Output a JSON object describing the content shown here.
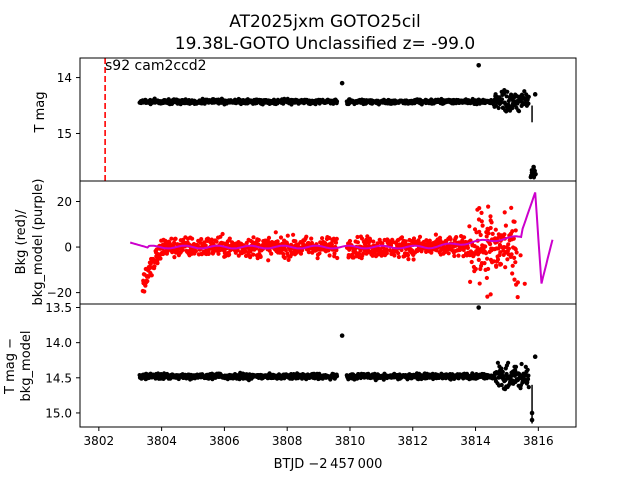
{
  "title": {
    "line1": "AT2025jxm  GOTO25cil",
    "line2": "19.38L-GOTO Unclassified z= -99.0"
  },
  "xlabel": "BTJD −2 457 000",
  "x_ticks": [
    "3802",
    "3804",
    "3806",
    "3808",
    "3810",
    "3812",
    "3814",
    "3816"
  ],
  "colors": {
    "mag": "#000000",
    "bkg": "#ff0000",
    "model": "#cc00cc",
    "marker": "#ff0000"
  },
  "chart_data": [
    {
      "type": "scatter",
      "panel": "top",
      "ylabel": "T mag",
      "y_ticks": [
        "14",
        "15"
      ],
      "ylim": [
        15.85,
        13.65
      ],
      "xlim": [
        3801.4,
        3817.2
      ],
      "annotation": {
        "text": "s92 cam2ccd2",
        "x": 3802.2
      },
      "marker_line": {
        "x": 3802.2,
        "color": "#ff0000",
        "style": "dashed"
      },
      "series": [
        {
          "name": "T mag",
          "color": "#000000",
          "x_range": [
            3803.3,
            3815.7
          ],
          "median": 14.43,
          "scatter": 0.04,
          "gap": [
            3809.6,
            3809.9
          ]
        }
      ],
      "points": [
        {
          "x": 3809.75,
          "y": 14.1
        },
        {
          "x": 3814.1,
          "y": 13.78
        },
        {
          "x": 3815.9,
          "y": 14.3
        },
        {
          "x": 3815.85,
          "y": 15.6
        },
        {
          "x": 3815.8,
          "y": 15.7
        }
      ]
    },
    {
      "type": "scatter",
      "panel": "middle",
      "ylabel": "Bkg (red)/\nbkg_model (purple)",
      "y_ticks": [
        "20",
        "0",
        "−20"
      ],
      "ylim": [
        -25,
        29
      ],
      "series": [
        {
          "name": "Bkg",
          "color": "#ff0000",
          "x_range": [
            3803.4,
            3815.3
          ],
          "median": 0,
          "scatter": 4
        },
        {
          "name": "bkg_model",
          "color": "#cc00cc",
          "x_range": [
            3803.0,
            3816.5
          ]
        }
      ]
    },
    {
      "type": "scatter",
      "panel": "bottom",
      "ylabel": "T mag −\nbkg_model",
      "y_ticks": [
        "13.5",
        "14.0",
        "14.5",
        "15.0"
      ],
      "ylim": [
        15.2,
        13.45
      ],
      "series": [
        {
          "name": "T mag - bkg_model",
          "color": "#000000",
          "x_range": [
            3803.3,
            3815.7
          ],
          "median": 14.48,
          "scatter": 0.04
        }
      ],
      "points": [
        {
          "x": 3809.75,
          "y": 13.9
        },
        {
          "x": 3814.1,
          "y": 13.5
        },
        {
          "x": 3815.9,
          "y": 14.2
        },
        {
          "x": 3815.8,
          "y": 15.0
        },
        {
          "x": 3815.8,
          "y": 15.1
        }
      ]
    }
  ]
}
